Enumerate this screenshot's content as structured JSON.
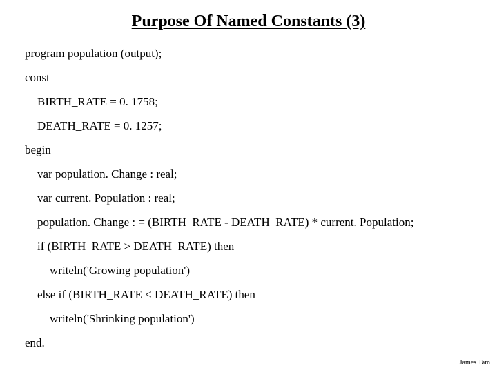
{
  "title": "Purpose Of Named Constants (3)",
  "lines": {
    "l0": "program population (output);",
    "l1": "const",
    "l2": "BIRTH_RATE = 0. 1758;",
    "l3": "DEATH_RATE =  0. 1257;",
    "l4": "begin",
    "l5": "var population. Change : real;",
    "l6": "var current. Population : real;",
    "l7": "population. Change : = (BIRTH_RATE - DEATH_RATE) * current. Population;",
    "l8": "if (BIRTH_RATE > DEATH_RATE) then",
    "l9": "writeln('Growing population')",
    "l10": "else if (BIRTH_RATE < DEATH_RATE) then",
    "l11": "writeln('Shrinking population')",
    "l12": "end."
  },
  "footer": "James Tam"
}
